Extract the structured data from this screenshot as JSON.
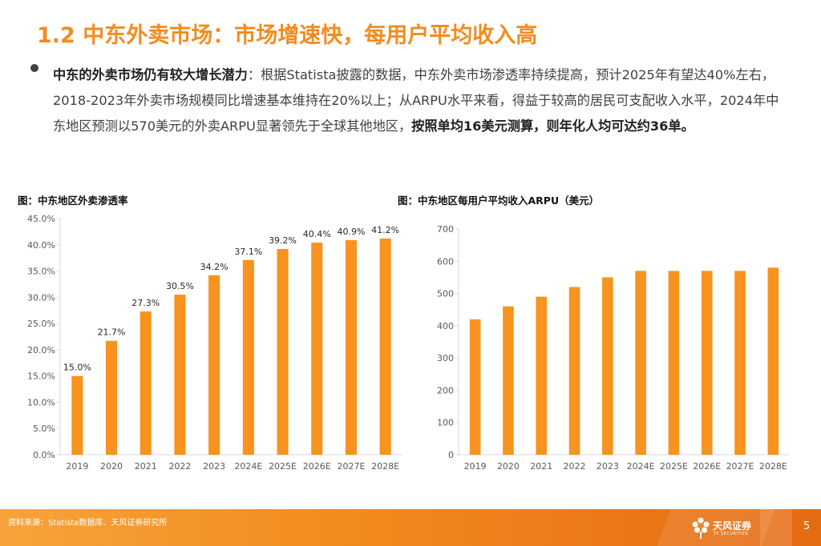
{
  "header": {
    "title": "1.2 中东外卖市场：市场增速快，每用户平均收入高"
  },
  "summary": {
    "lead": "中东的外卖市场仍有较大增长潜力",
    "text": "：根据Statista披露的数据，中东外卖市场渗透率持续提高，预计2025年有望达40%左右，2018-2023年外卖市场规模同比增速基本维持在20%以上；从ARPU水平来看，得益于较高的居民可支配收入水平，2024年中东地区预测以570美元的外卖ARPU显著领先于全球其他地区，",
    "emphasis": "按照单均16美元测算，则年化人均可达约36单。"
  },
  "colors": {
    "accent": "#F28C1E",
    "bar": "#F7931E"
  },
  "chart_data": [
    {
      "type": "bar",
      "title": "图：中东地区外卖渗透率",
      "categories": [
        "2019",
        "2020",
        "2021",
        "2022",
        "2023",
        "2024E",
        "2025E",
        "2026E",
        "2027E",
        "2028E"
      ],
      "values": [
        15.0,
        21.7,
        27.3,
        30.5,
        34.2,
        37.1,
        39.2,
        40.4,
        40.9,
        41.2
      ],
      "data_labels": [
        "15.0%",
        "21.7%",
        "27.3%",
        "30.5%",
        "34.2%",
        "37.1%",
        "39.2%",
        "40.4%",
        "40.9%",
        "41.2%"
      ],
      "ylim": [
        0,
        45
      ],
      "yticks": [
        0,
        5,
        10,
        15,
        20,
        25,
        30,
        35,
        40,
        45
      ],
      "ytick_labels": [
        "0.0%",
        "5.0%",
        "10.0%",
        "15.0%",
        "20.0%",
        "25.0%",
        "30.0%",
        "35.0%",
        "40.0%",
        "45.0%"
      ],
      "xlabel": "",
      "ylabel": "",
      "grid": false
    },
    {
      "type": "bar",
      "title": "图：中东地区每用户平均收入ARPU（美元）",
      "categories": [
        "2019",
        "2020",
        "2021",
        "2022",
        "2023",
        "2024E",
        "2025E",
        "2026E",
        "2027E",
        "2028E"
      ],
      "values": [
        420,
        460,
        490,
        520,
        550,
        570,
        570,
        570,
        570,
        580
      ],
      "ylim": [
        0,
        700
      ],
      "yticks": [
        0,
        100,
        200,
        300,
        400,
        500,
        600,
        700
      ],
      "ytick_labels": [
        "0",
        "100",
        "200",
        "300",
        "400",
        "500",
        "600",
        "700"
      ],
      "xlabel": "",
      "ylabel": "",
      "grid": false
    }
  ],
  "footer": {
    "source": "资料来源：Statista数据库、天风证券研究所",
    "logo_text": "天风证券",
    "logo_sub": "TF SECURITIES",
    "page_number": "5"
  }
}
